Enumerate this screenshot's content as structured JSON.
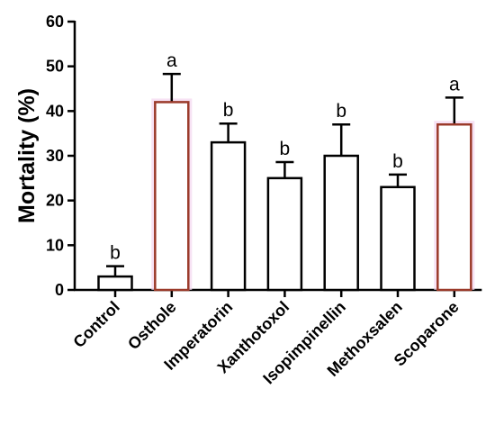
{
  "chart_data": {
    "type": "bar",
    "title": "",
    "xlabel": "",
    "ylabel": "Mortality (%)",
    "ylim": [
      0,
      60
    ],
    "yticks": [
      0,
      10,
      20,
      30,
      40,
      50,
      60
    ],
    "categories": [
      "Control",
      "Osthole",
      "Imperatorin",
      "Xanthotoxol",
      "Isopimpinellin",
      "Methoxsalen",
      "Scoparone"
    ],
    "values": [
      3,
      42,
      33,
      25,
      30,
      23,
      37
    ],
    "errors": [
      2.3,
      6.3,
      4.2,
      3.6,
      7.0,
      2.8,
      6.0
    ],
    "significance": [
      "b",
      "a",
      "b",
      "b",
      "b",
      "b",
      "a"
    ],
    "highlighted": [
      false,
      true,
      false,
      false,
      false,
      false,
      true
    ],
    "colors": {
      "bar_fill": "#ffffff",
      "bar_edge": "#000000",
      "highlight_edge": "#9b3a2a",
      "highlight_glow": "#f4d6f0"
    },
    "grid": false,
    "legend": "none"
  }
}
